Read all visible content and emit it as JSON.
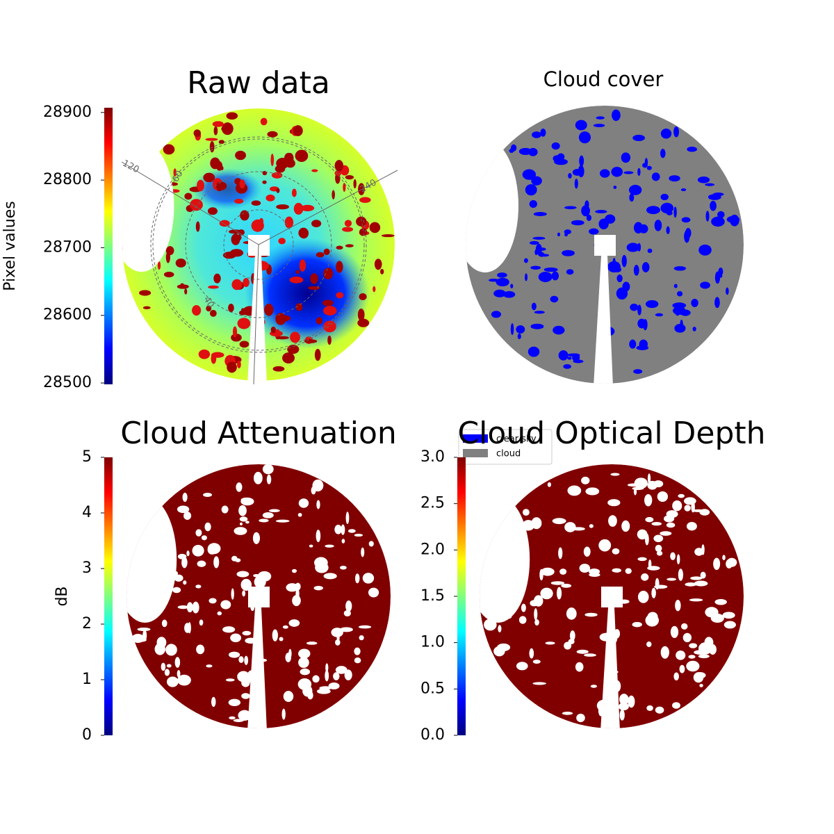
{
  "chart_data": [
    {
      "type": "image",
      "title": "Raw data",
      "colormap": "jet",
      "colorbar_label": "Pixel values",
      "ylim": [
        28498,
        28907
      ],
      "yticks": [
        28500,
        28600,
        28700,
        28800,
        28900
      ],
      "annotations": [
        "120",
        "60",
        "240",
        "40"
      ]
    },
    {
      "type": "image",
      "title": "Cloud cover",
      "legend": [
        {
          "name": "clear sky",
          "color": "#0000ff"
        },
        {
          "name": "cloud",
          "color": "#808080"
        }
      ]
    },
    {
      "type": "image",
      "title": "Cloud Attenuation",
      "colormap": "jet",
      "colorbar_label": "dB",
      "color": "#800000",
      "ylim": [
        0,
        5
      ],
      "yticks": [
        0,
        1,
        2,
        3,
        4,
        5
      ]
    },
    {
      "type": "image",
      "title": "Cloud Optical Depth",
      "colormap": "jet",
      "color": "#800000",
      "ylim": [
        0,
        3
      ],
      "yticks": [
        {
          "value": 0,
          "label": "0.0"
        },
        {
          "value": 0.5,
          "label": "0.5"
        },
        {
          "value": 1,
          "label": "1.0"
        },
        {
          "value": 1.5,
          "label": "1.5"
        },
        {
          "value": 2,
          "label": "2.0"
        },
        {
          "value": 2.5,
          "label": "2.5"
        },
        {
          "value": 3,
          "label": "3.0"
        }
      ]
    }
  ]
}
